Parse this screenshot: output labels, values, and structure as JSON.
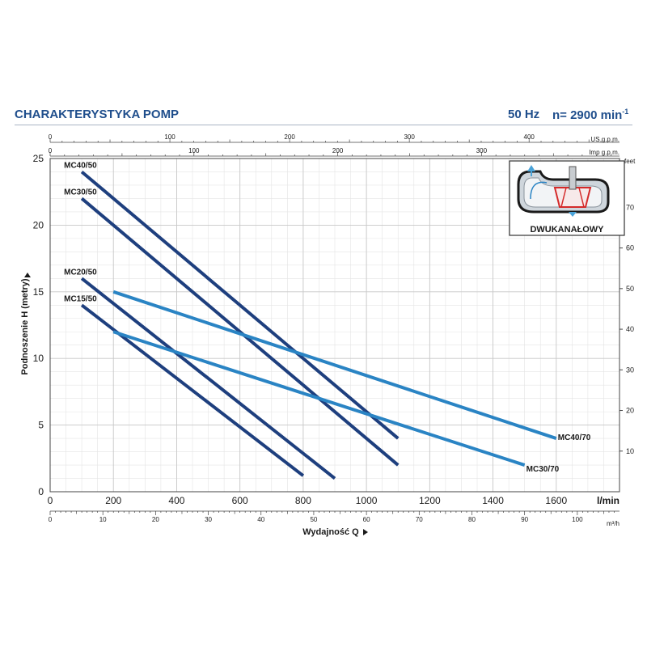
{
  "header": {
    "title": "CHARAKTERYSTYKA POMP",
    "frequency": "50 Hz",
    "speed_label": "n= 2900 min",
    "speed_exponent": "-1"
  },
  "inset": {
    "label": "DWUKANAŁOWY",
    "icon": "dual-channel-impeller-icon"
  },
  "colors": {
    "dark_series": "#1e3f7e",
    "light_series": "#2a84c4",
    "grid": "#c8c8c8",
    "header_text": "#1f4e8c"
  },
  "chart_data": {
    "type": "line",
    "ylabel": "Podnoszenie H  (metry)",
    "xlabel": "Wydajność  Q",
    "xlim": [
      0,
      1800
    ],
    "ylim": [
      0,
      25
    ],
    "grid": true,
    "axes": {
      "y_left": {
        "unit": "",
        "ticks": [
          0,
          5,
          10,
          15,
          20,
          25
        ]
      },
      "y_right": {
        "unit": "feet",
        "ticks": [
          10,
          20,
          30,
          40,
          50,
          60,
          70
        ],
        "per_meter": 3.28084
      },
      "x_lmin": {
        "unit": "l/min",
        "ticks": [
          0,
          200,
          400,
          600,
          800,
          1000,
          1200,
          1400,
          1600
        ]
      },
      "x_m3h": {
        "unit": "m³/h",
        "ticks": [
          0,
          10,
          20,
          30,
          40,
          50,
          60,
          70,
          80,
          90,
          100
        ],
        "lmin_per_unit": 16.6667
      },
      "x_usgpm": {
        "unit": "US g.p.m.",
        "ticks": [
          0,
          100,
          200,
          300,
          400
        ],
        "lmin_per_unit": 3.78541
      },
      "x_impgpm": {
        "unit": "Imp g.p.m.",
        "ticks": [
          0,
          100,
          200,
          300
        ],
        "lmin_per_unit": 4.54609
      }
    },
    "series": [
      {
        "name": "MC40/50",
        "style": "dark",
        "points": [
          [
            100,
            24
          ],
          [
            1100,
            4
          ]
        ]
      },
      {
        "name": "MC30/50",
        "style": "dark",
        "points": [
          [
            100,
            22
          ],
          [
            1100,
            2
          ]
        ]
      },
      {
        "name": "MC20/50",
        "style": "dark",
        "points": [
          [
            100,
            16
          ],
          [
            900,
            1
          ]
        ]
      },
      {
        "name": "MC15/50",
        "style": "dark",
        "points": [
          [
            100,
            14
          ],
          [
            800,
            1.2
          ]
        ]
      },
      {
        "name": "MC40/70",
        "style": "light",
        "points": [
          [
            200,
            15
          ],
          [
            1600,
            4
          ]
        ]
      },
      {
        "name": "MC30/70",
        "style": "light",
        "points": [
          [
            200,
            12
          ],
          [
            1500,
            2
          ]
        ]
      }
    ]
  }
}
